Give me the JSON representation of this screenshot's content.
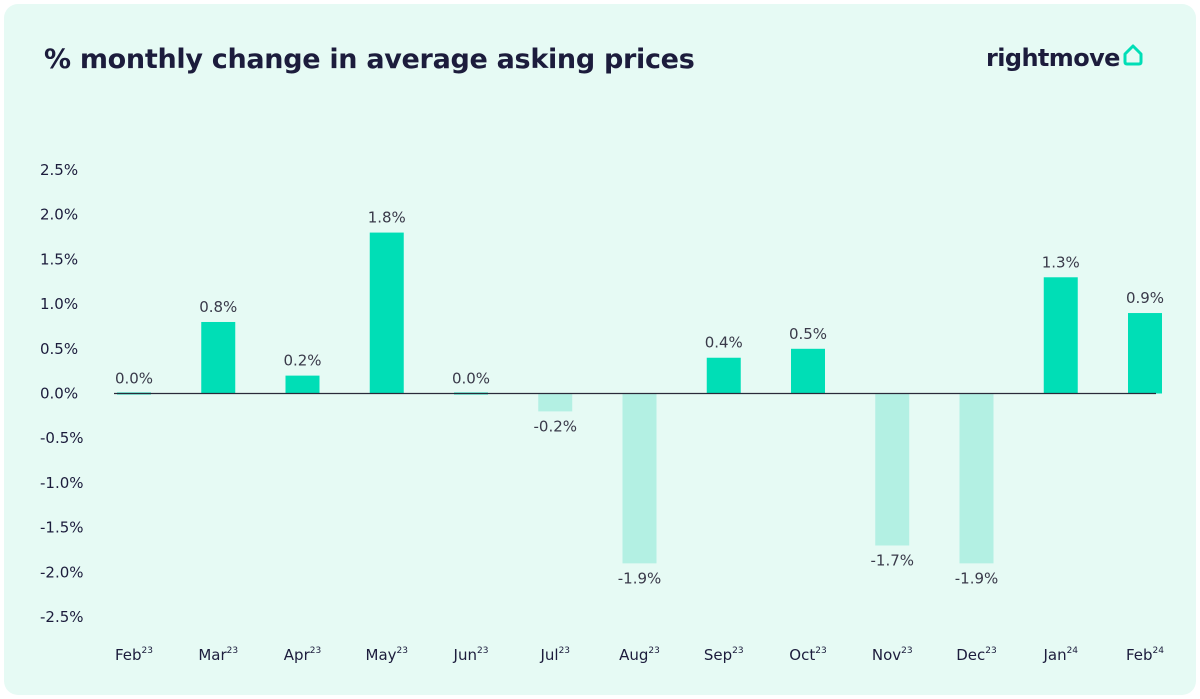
{
  "header": {
    "title": "% monthly change in average asking prices",
    "brand": "rightmove",
    "brand_icon": "house-outline-icon"
  },
  "colors": {
    "background": "#e6faf4",
    "positive": "#00deb6",
    "negative": "#b3f0e3",
    "text": "#1c1c3c"
  },
  "chart_data": {
    "type": "bar",
    "categories": [
      "Feb",
      "Mar",
      "Apr",
      "May",
      "Jun",
      "Jul",
      "Aug",
      "Sep",
      "Oct",
      "Nov",
      "Dec",
      "Jan",
      "Feb"
    ],
    "category_years": [
      "23",
      "23",
      "23",
      "23",
      "23",
      "23",
      "23",
      "23",
      "23",
      "23",
      "23",
      "24",
      "24"
    ],
    "values": [
      0.0,
      0.8,
      0.2,
      1.8,
      0.0,
      -0.2,
      -1.9,
      0.4,
      0.5,
      -1.7,
      -1.9,
      1.3,
      0.9
    ],
    "data_labels": [
      "0.0%",
      "0.8%",
      "0.2%",
      "1.8%",
      "0.0%",
      "-0.2%",
      "-1.9%",
      "0.4%",
      "0.5%",
      "-1.7%",
      "-1.9%",
      "1.3%",
      "0.9%"
    ],
    "title": "% monthly change in average asking prices",
    "xlabel": "",
    "ylabel": "",
    "ylim": [
      -2.5,
      2.5
    ],
    "yticks": [
      2.5,
      2.0,
      1.5,
      1.0,
      0.5,
      0.0,
      -0.5,
      -1.0,
      -1.5,
      -2.0,
      -2.5
    ],
    "ytick_labels": [
      "2.5%",
      "2.0%",
      "1.5%",
      "1.0%",
      "0.5%",
      "0.0%",
      "-0.5%",
      "-1.0%",
      "-1.5%",
      "-2.0%",
      "-2.5%"
    ],
    "grid": false,
    "legend": "none"
  }
}
